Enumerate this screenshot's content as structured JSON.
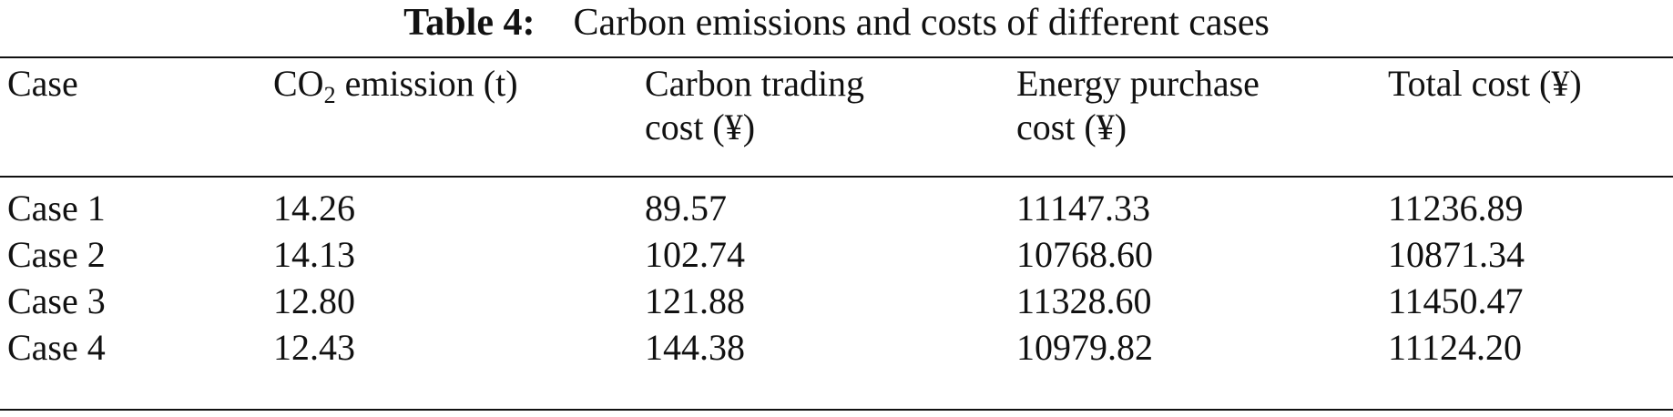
{
  "caption": {
    "label": "Table 4:",
    "text": "Carbon emissions and costs of different cases"
  },
  "table": {
    "headers": {
      "case": "Case",
      "co2": {
        "prefix": "CO",
        "subscript": "2",
        "suffix": " emission (t)"
      },
      "carbon_trading": {
        "line1": "Carbon trading",
        "line2": "cost (¥)"
      },
      "energy_purchase": {
        "line1": "Energy purchase",
        "line2": "cost (¥)"
      },
      "total_cost": "Total cost (¥)"
    },
    "rows": [
      [
        "Case 1",
        "14.26",
        "89.57",
        "11147.33",
        "11236.89"
      ],
      [
        "Case 2",
        "14.13",
        "102.74",
        "10768.60",
        "10871.34"
      ],
      [
        "Case 3",
        "12.80",
        "121.88",
        "11328.60",
        "11450.47"
      ],
      [
        "Case 4",
        "12.43",
        "144.38",
        "10979.82",
        "11124.20"
      ]
    ]
  }
}
